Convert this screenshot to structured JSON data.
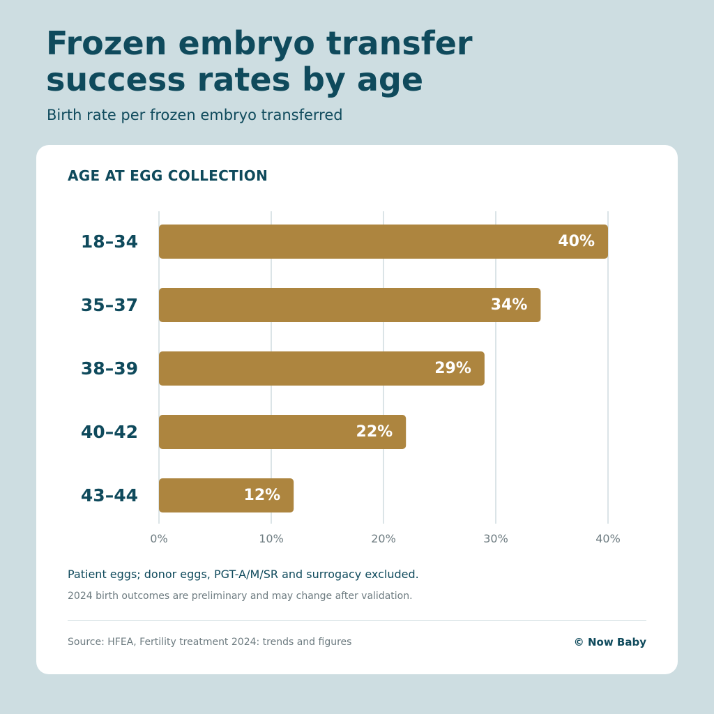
{
  "header": {
    "title": "Frozen embryo transfer\nsuccess rates by age",
    "subtitle": "Birth rate per frozen embryo transferred"
  },
  "chart_data": {
    "type": "bar",
    "orientation": "horizontal",
    "ylabel": "AGE AT EGG COLLECTION",
    "categories": [
      "18–34",
      "35–37",
      "38–39",
      "40–42",
      "43–44"
    ],
    "values": [
      40,
      34,
      29,
      22,
      12
    ],
    "value_labels": [
      "40%",
      "34%",
      "29%",
      "22%",
      "12%"
    ],
    "xlim": [
      0,
      40
    ],
    "x_ticks": [
      0,
      10,
      20,
      30,
      40
    ],
    "x_tick_labels": [
      "0%",
      "10%",
      "20%",
      "30%",
      "40%"
    ],
    "grid": true,
    "bar_color": "#ad853f"
  },
  "notes": {
    "primary": "Patient eggs; donor eggs, PGT-A/M/SR and surrogacy excluded.",
    "secondary": "2024 birth outcomes are preliminary and may change after validation."
  },
  "footer": {
    "source": "Source: HFEA, Fertility treatment 2024: trends and figures",
    "credit": "© Now Baby"
  }
}
